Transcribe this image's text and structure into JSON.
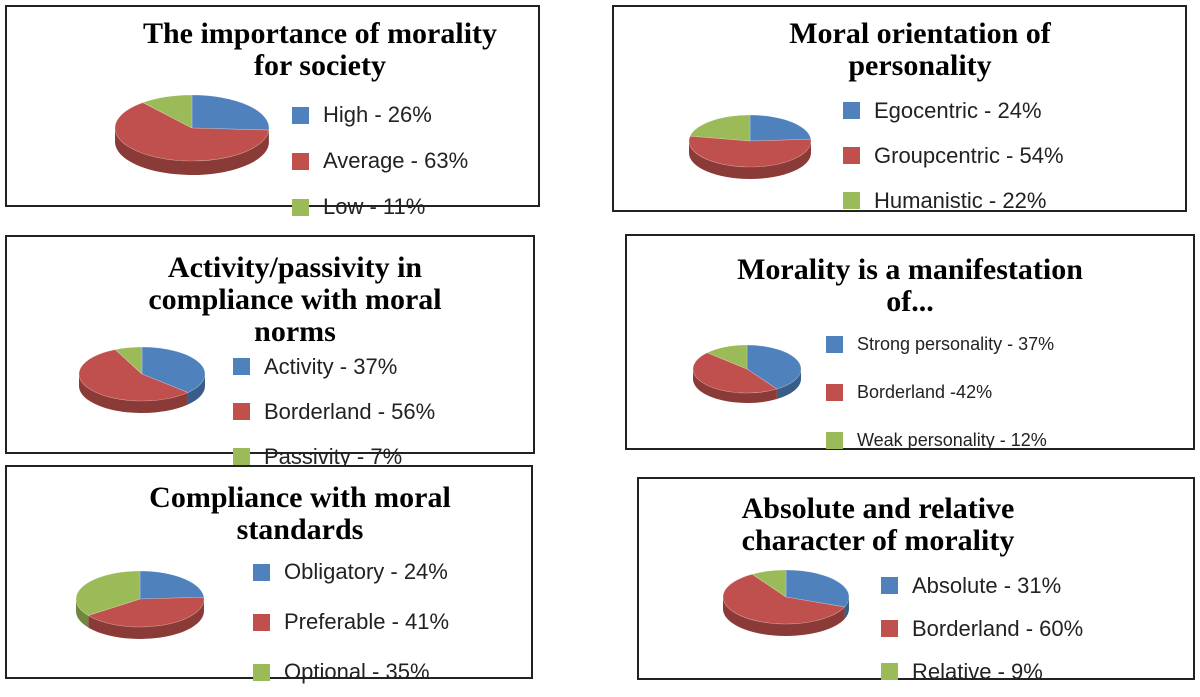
{
  "colors": {
    "blue": "#4f81bd",
    "red": "#c0504d",
    "green": "#9bbb59"
  },
  "chart_data": [
    {
      "type": "pie",
      "title_lines": [
        "The importance  of morality",
        "for society"
      ],
      "categories": [
        "High",
        "Average",
        "Low"
      ],
      "values": [
        26,
        63,
        11
      ],
      "legend_labels": [
        "High - 26%",
        "Average - 63%",
        "Low - 11%"
      ],
      "legend_position": "right"
    },
    {
      "type": "pie",
      "title_lines": [
        "Moral  orientation  of",
        "personality"
      ],
      "categories": [
        "Egocentric",
        "Groupcentric",
        "Humanistic"
      ],
      "values": [
        24,
        54,
        22
      ],
      "legend_labels": [
        "Egocentric - 24%",
        "Groupcentric - 54%",
        "Humanistic - 22%"
      ],
      "legend_position": "right"
    },
    {
      "type": "pie",
      "title_lines": [
        "Activity/passivity  in",
        "compliance  with  moral",
        "norms"
      ],
      "categories": [
        "Activity",
        "Borderland",
        "Passivity"
      ],
      "values": [
        37,
        56,
        7
      ],
      "legend_labels": [
        "Activity - 37%",
        "Borderland - 56%",
        "Passivity - 7%"
      ],
      "legend_position": "right"
    },
    {
      "type": "pie",
      "title_lines": [
        "Morality  is a manifestation",
        "of..."
      ],
      "categories": [
        "Strong personality",
        "Borderland",
        "Weak personality"
      ],
      "values": [
        37,
        42,
        12
      ],
      "legend_labels": [
        "Strong personality - 37%",
        "Borderland -42%",
        "Weak personality - 12%"
      ],
      "legend_position": "right"
    },
    {
      "type": "pie",
      "title_lines": [
        "Compliance  with  moral",
        "standards"
      ],
      "categories": [
        "Obligatory",
        "Preferable",
        "Optional"
      ],
      "values": [
        24,
        41,
        35
      ],
      "legend_labels": [
        "Obligatory - 24%",
        "Preferable - 41%",
        "Optional - 35%"
      ],
      "legend_position": "right"
    },
    {
      "type": "pie",
      "title_lines": [
        "Absolute  and  relative",
        "character  of morality"
      ],
      "categories": [
        "Absolute",
        "Borderland",
        "Relative"
      ],
      "values": [
        31,
        60,
        9
      ],
      "legend_labels": [
        "Absolute - 31%",
        "Borderland - 60%",
        "Relative - 9%"
      ],
      "legend_position": "right"
    }
  ]
}
